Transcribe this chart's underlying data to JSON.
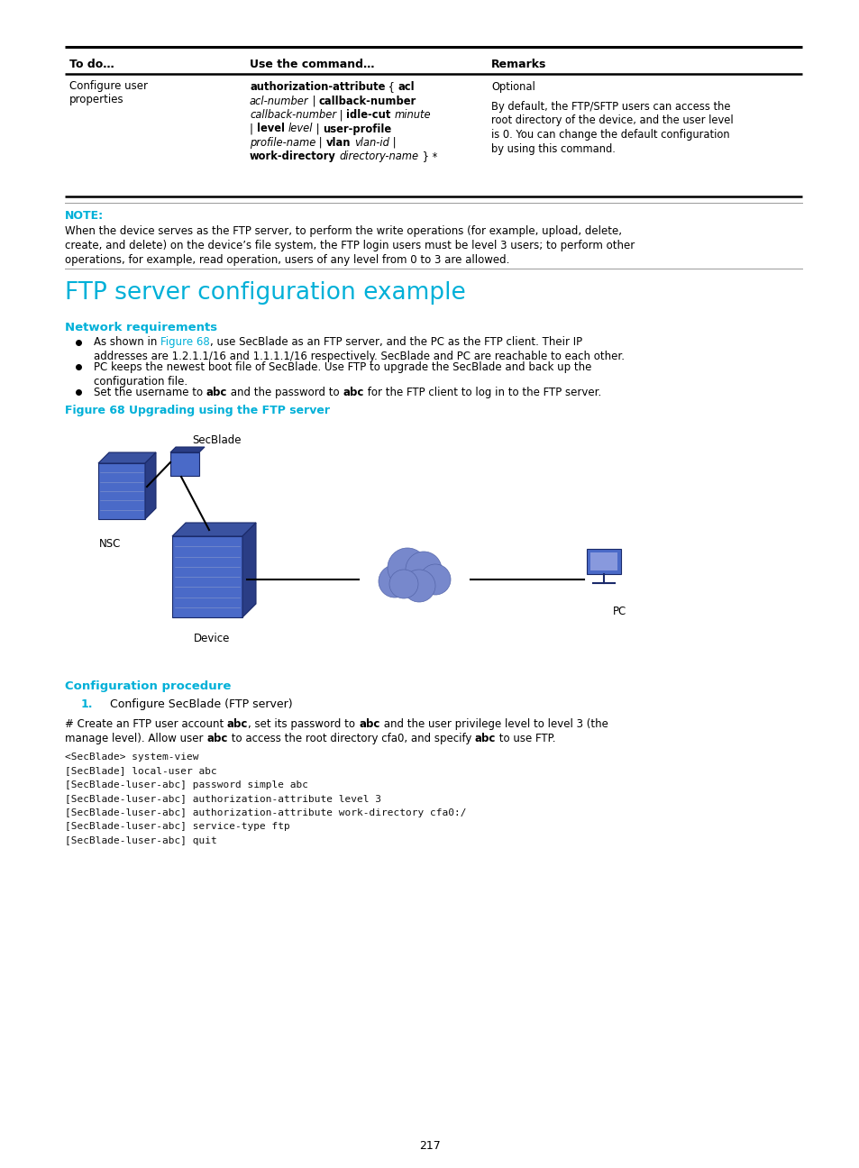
{
  "bg_color": "#ffffff",
  "page_width": 9.54,
  "page_height": 12.96,
  "cyan_color": "#00b0d8",
  "black_color": "#000000",
  "table_lm": 0.075,
  "table_rm": 0.935,
  "table_c1": 0.285,
  "table_c2": 0.565,
  "note_text_line1": "When the device serves as the FTP server, to perform the write operations (for example, upload, delete,",
  "note_text_line2": "create, and delete) on the device’s file system, the FTP login users must be level 3 users; to perform other",
  "note_text_line3": "operations, for example, read operation, users of any level from 0 to 3 are allowed.",
  "section_title": "FTP server configuration example",
  "subsection1": "Network requirements",
  "fig_caption": "Figure 68 Upgrading using the FTP server",
  "subsection2": "Configuration procedure",
  "step1_text": "Configure SecBlade (FTP server)",
  "code_lines": [
    "<SecBlade> system-view",
    "[SecBlade] local-user abc",
    "[SecBlade-luser-abc] password simple abc",
    "[SecBlade-luser-abc] authorization-attribute level 3",
    "[SecBlade-luser-abc] authorization-attribute work-directory cfa0:/",
    "[SecBlade-luser-abc] service-type ftp",
    "[SecBlade-luser-abc] quit"
  ],
  "page_num": "217"
}
